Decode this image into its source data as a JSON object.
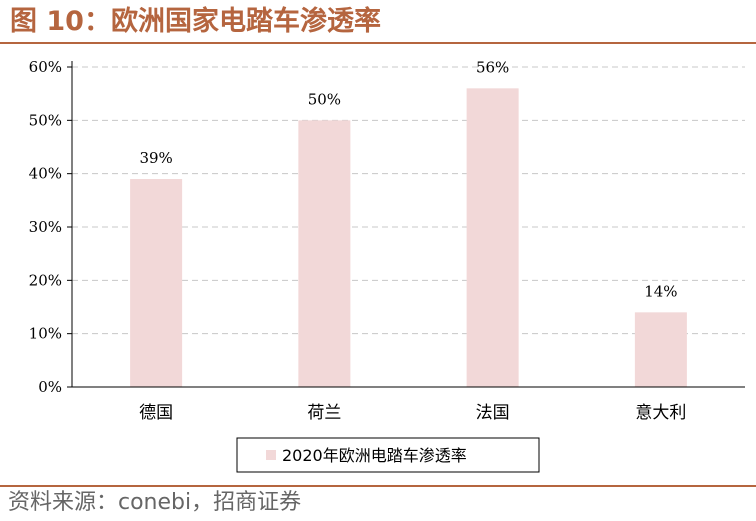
{
  "header": {
    "title": "图 10：欧洲国家电踏车渗透率"
  },
  "footer": {
    "source": "资料来源：conebi，招商证券"
  },
  "colors": {
    "accent": "#b5653f",
    "bar": "#f2d8d8",
    "grid": "#c8c8c8",
    "axis": "#000000"
  },
  "chart_data": {
    "type": "bar",
    "categories": [
      "德国",
      "荷兰",
      "法国",
      "意大利"
    ],
    "series": [
      {
        "name": "2020年欧洲电踏车渗透率",
        "values": [
          39,
          50,
          56,
          14
        ],
        "data_labels": [
          "39%",
          "50%",
          "56%",
          "14%"
        ]
      }
    ],
    "yticks": [
      0,
      10,
      20,
      30,
      40,
      50,
      60
    ],
    "ytick_labels": [
      "0%",
      "10%",
      "20%",
      "30%",
      "40%",
      "50%",
      "60%"
    ],
    "ylim": [
      0,
      60
    ],
    "grid": "horizontal dashed",
    "legend": "bottom"
  }
}
